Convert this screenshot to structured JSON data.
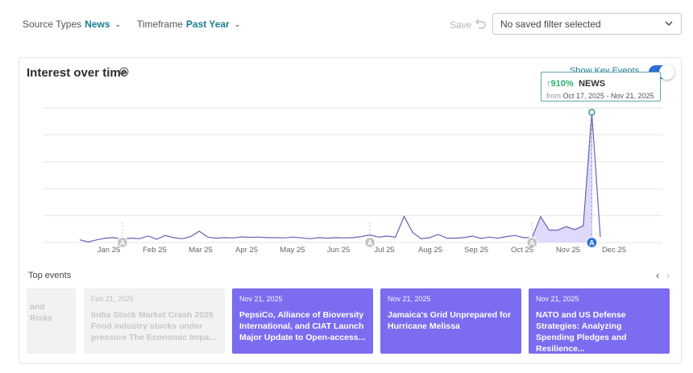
{
  "filters": {
    "source_types": {
      "label": "Source Types",
      "value": "News"
    },
    "timeframe": {
      "label": "Timeframe",
      "value": "Past Year"
    }
  },
  "save": {
    "label": "Save"
  },
  "saved_filter": {
    "value": "No saved filter selected"
  },
  "card": {
    "title": "Interest over time",
    "show_key_events": {
      "label": "Show Key Events",
      "enabled": true
    }
  },
  "tooltip": {
    "change": "910%",
    "series": "NEWS",
    "from_label": "from",
    "range": "Oct 17, 2025 - Nov 21, 2025"
  },
  "chart_data": {
    "type": "area",
    "xlabels": [
      "Jan 25",
      "Feb 25",
      "Mar 25",
      "Apr 25",
      "May 25",
      "Jun 25",
      "Jul 25",
      "Aug 25",
      "Sep 25",
      "Oct 25",
      "Nov 25",
      "Dec 25"
    ],
    "series": [
      {
        "name": "News",
        "values": [
          1.0,
          0.2,
          1.0,
          1.6,
          1.8,
          1.2,
          1.6,
          1.4,
          2.4,
          1.2,
          2.6,
          1.8,
          1.4,
          2.2,
          4.2,
          2.0,
          1.6,
          1.8,
          1.7,
          2.1,
          1.9,
          2.0,
          1.8,
          1.8,
          1.7,
          2.0,
          1.7,
          1.4,
          1.8,
          1.6,
          1.8,
          1.7,
          1.8,
          2.2,
          2.8,
          2.0,
          2.4,
          2.0,
          9.7,
          3.8,
          1.4,
          1.8,
          3.0,
          1.6,
          1.6,
          1.8,
          2.4,
          1.5,
          2.0,
          1.6,
          2.2,
          2.6,
          1.8,
          1.8,
          9.6,
          4.6,
          4.6,
          5.9,
          4.8,
          6.2,
          48.4,
          2.0
        ]
      }
    ],
    "ylim": [
      0,
      50
    ],
    "grid": true,
    "highlight_range": {
      "from_index": 53,
      "to_index": 60
    },
    "key_events": [
      {
        "label": "A",
        "index": 5
      },
      {
        "label": "A",
        "index": 34
      },
      {
        "label": "A",
        "index": 53
      },
      {
        "label": "A",
        "index": 60
      }
    ]
  },
  "colors": {
    "accent": "#7b6cf0",
    "line": "#6b5fb3",
    "fill": "#d9d2fb",
    "teal": "#1b7f93",
    "up": "#2bb36b"
  },
  "events": {
    "title": "Top events",
    "items": [
      {
        "date": "",
        "headline": "and Risks",
        "state": "faded"
      },
      {
        "date": "Feb 21, 2025",
        "headline": "India Stock Market Crash 2025 Food industry stocks under pressure The Economic Impa...",
        "state": "faded"
      },
      {
        "date": "Nov 21, 2025",
        "headline": "PepsiCo, Alliance of Bioversity International, and CIAT Launch Major Update to Open-access...",
        "state": "active"
      },
      {
        "date": "Nov 21, 2025",
        "headline": "Jamaica's Grid Unprepared for Hurricane Melissa",
        "state": "active"
      },
      {
        "date": "Nov 21, 2025",
        "headline": "NATO and US Defense Strategies: Analyzing Spending Pledges and Resilience...",
        "state": "active"
      }
    ]
  }
}
